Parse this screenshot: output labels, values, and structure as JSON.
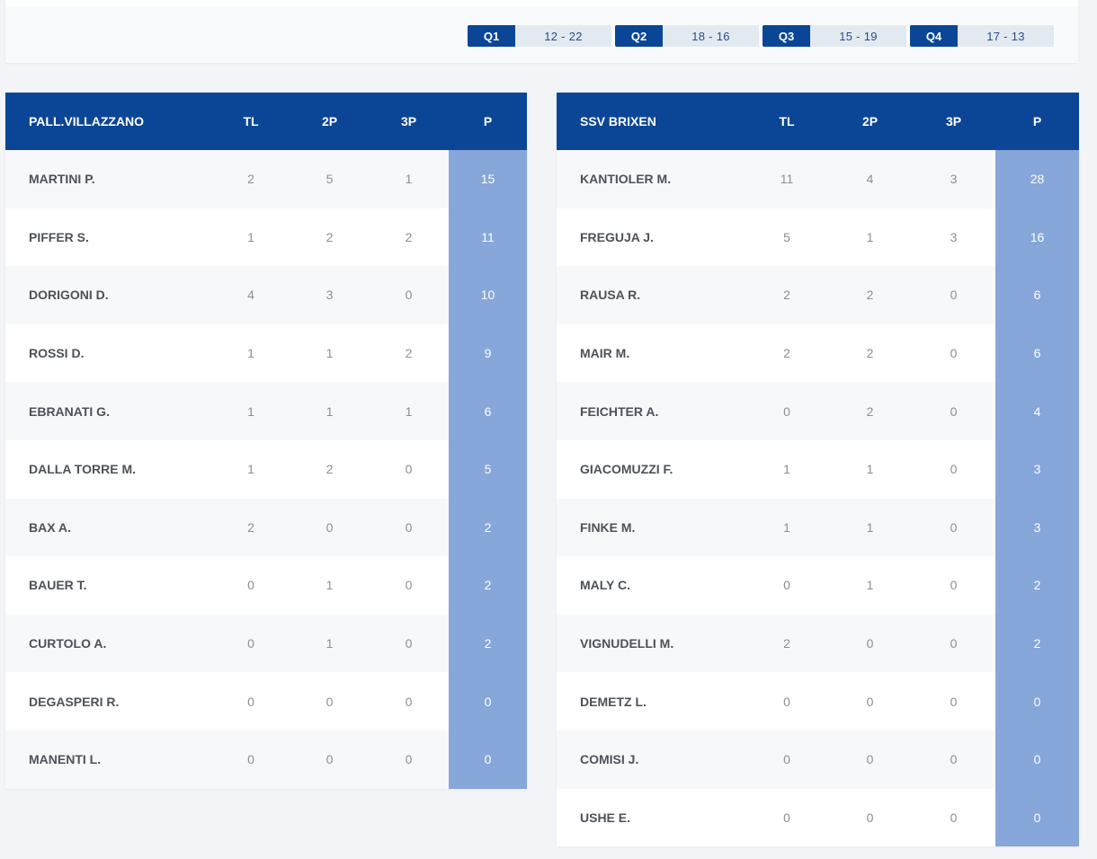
{
  "quarters": [
    {
      "label": "Q1",
      "score": "12 - 22"
    },
    {
      "label": "Q2",
      "score": "18 - 16"
    },
    {
      "label": "Q3",
      "score": "15 - 19"
    },
    {
      "label": "Q4",
      "score": "17 - 13"
    }
  ],
  "colors": {
    "header_blue": "#0b4696",
    "points_column": "#87a6d9",
    "score_bg": "#e3e9f1"
  },
  "teams": [
    {
      "name": "PALL.VILLAZZANO",
      "columns": [
        "TL",
        "2P",
        "3P",
        "P"
      ],
      "players": [
        {
          "name": "MARTINI P.",
          "tl": "2",
          "p2": "5",
          "p3": "1",
          "pts": "15"
        },
        {
          "name": "PIFFER S.",
          "tl": "1",
          "p2": "2",
          "p3": "2",
          "pts": "11"
        },
        {
          "name": "DORIGONI D.",
          "tl": "4",
          "p2": "3",
          "p3": "0",
          "pts": "10"
        },
        {
          "name": "ROSSI D.",
          "tl": "1",
          "p2": "1",
          "p3": "2",
          "pts": "9"
        },
        {
          "name": "EBRANATI G.",
          "tl": "1",
          "p2": "1",
          "p3": "1",
          "pts": "6"
        },
        {
          "name": "DALLA TORRE M.",
          "tl": "1",
          "p2": "2",
          "p3": "0",
          "pts": "5"
        },
        {
          "name": "BAX A.",
          "tl": "2",
          "p2": "0",
          "p3": "0",
          "pts": "2"
        },
        {
          "name": "BAUER T.",
          "tl": "0",
          "p2": "1",
          "p3": "0",
          "pts": "2"
        },
        {
          "name": "CURTOLO A.",
          "tl": "0",
          "p2": "1",
          "p3": "0",
          "pts": "2"
        },
        {
          "name": "DEGASPERI R.",
          "tl": "0",
          "p2": "0",
          "p3": "0",
          "pts": "0"
        },
        {
          "name": "MANENTI L.",
          "tl": "0",
          "p2": "0",
          "p3": "0",
          "pts": "0"
        }
      ]
    },
    {
      "name": "SSV BRIXEN",
      "columns": [
        "TL",
        "2P",
        "3P",
        "P"
      ],
      "players": [
        {
          "name": "KANTIOLER M.",
          "tl": "11",
          "p2": "4",
          "p3": "3",
          "pts": "28"
        },
        {
          "name": "FREGUJA J.",
          "tl": "5",
          "p2": "1",
          "p3": "3",
          "pts": "16"
        },
        {
          "name": "RAUSA R.",
          "tl": "2",
          "p2": "2",
          "p3": "0",
          "pts": "6"
        },
        {
          "name": "MAIR M.",
          "tl": "2",
          "p2": "2",
          "p3": "0",
          "pts": "6"
        },
        {
          "name": "FEICHTER A.",
          "tl": "0",
          "p2": "2",
          "p3": "0",
          "pts": "4"
        },
        {
          "name": "GIACOMUZZI F.",
          "tl": "1",
          "p2": "1",
          "p3": "0",
          "pts": "3"
        },
        {
          "name": "FINKE M.",
          "tl": "1",
          "p2": "1",
          "p3": "0",
          "pts": "3"
        },
        {
          "name": "MALY C.",
          "tl": "0",
          "p2": "1",
          "p3": "0",
          "pts": "2"
        },
        {
          "name": "VIGNUDELLI M.",
          "tl": "2",
          "p2": "0",
          "p3": "0",
          "pts": "2"
        },
        {
          "name": "DEMETZ L.",
          "tl": "0",
          "p2": "0",
          "p3": "0",
          "pts": "0"
        },
        {
          "name": "COMISI J.",
          "tl": "0",
          "p2": "0",
          "p3": "0",
          "pts": "0"
        },
        {
          "name": "USHE E.",
          "tl": "0",
          "p2": "0",
          "p3": "0",
          "pts": "0"
        }
      ]
    }
  ]
}
